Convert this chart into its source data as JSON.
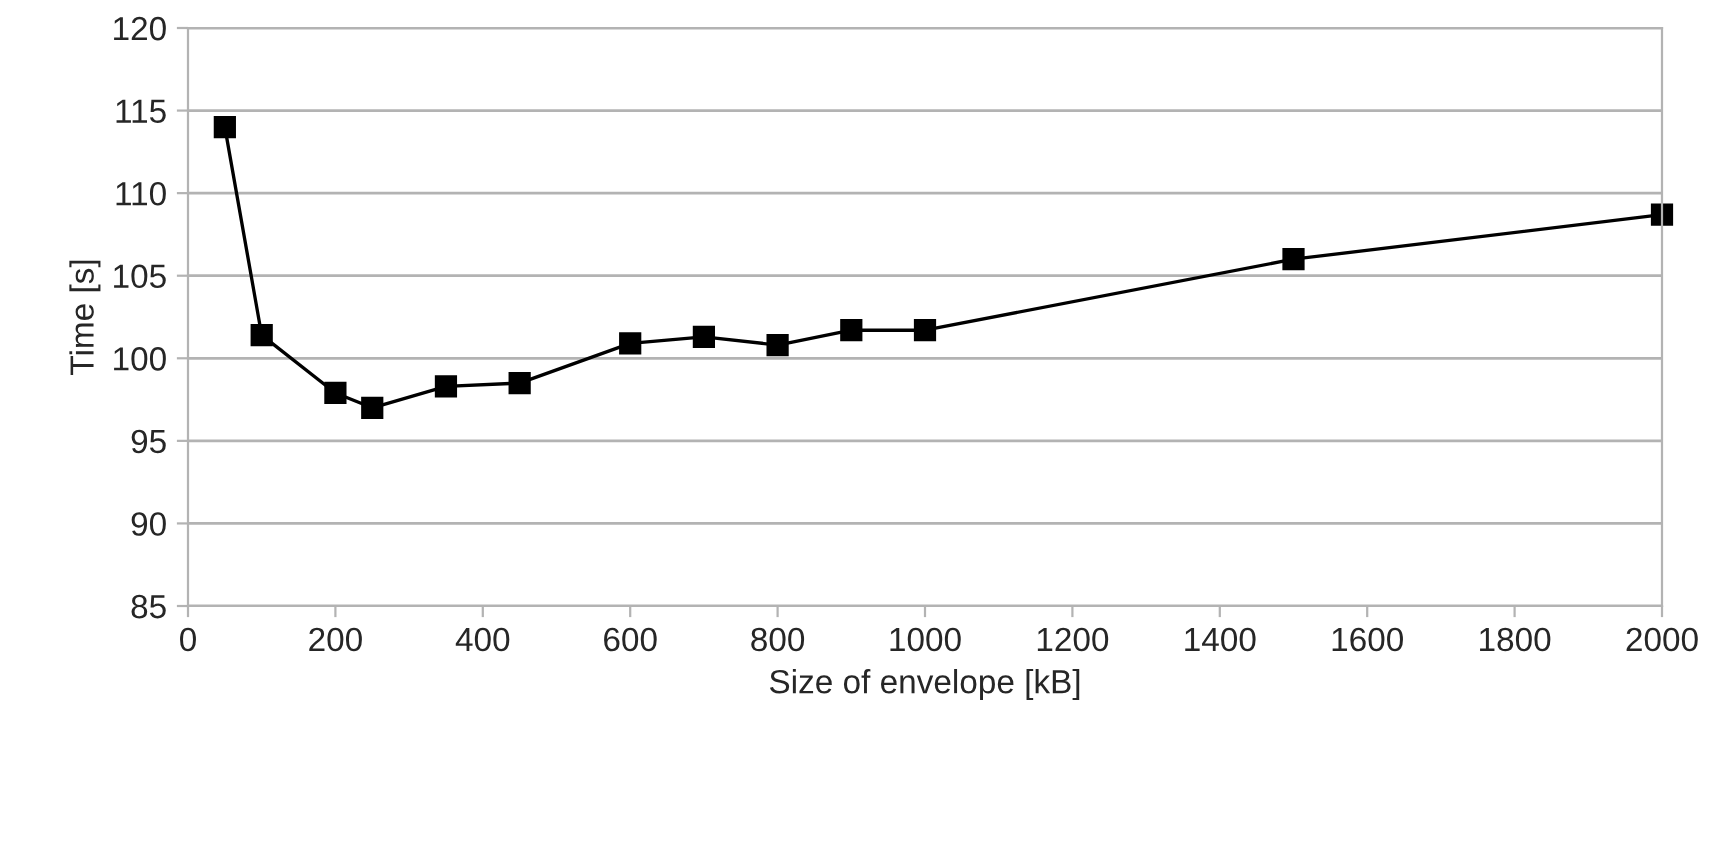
{
  "chart_data": {
    "type": "line",
    "xlabel": "Size of envelope [kB]",
    "ylabel": "Time [s]",
    "x": [
      50,
      100,
      200,
      250,
      350,
      450,
      600,
      700,
      800,
      900,
      1000,
      1500,
      2000
    ],
    "series": [
      {
        "color": "#000000",
        "values": [
          114.0,
          101.4,
          97.9,
          97.0,
          98.3,
          98.5,
          100.9,
          101.3,
          100.8,
          101.7,
          101.7,
          106.0,
          108.7
        ]
      }
    ],
    "xlim": [
      0,
      2000
    ],
    "xticks": [
      0,
      200,
      400,
      600,
      800,
      1000,
      1200,
      1400,
      1600,
      1800,
      2000
    ],
    "ylim": [
      85,
      120
    ],
    "yticks": [
      85,
      90,
      95,
      100,
      105,
      110,
      115,
      120
    ],
    "grid": "y",
    "marker": "square",
    "line_style": "solid"
  }
}
